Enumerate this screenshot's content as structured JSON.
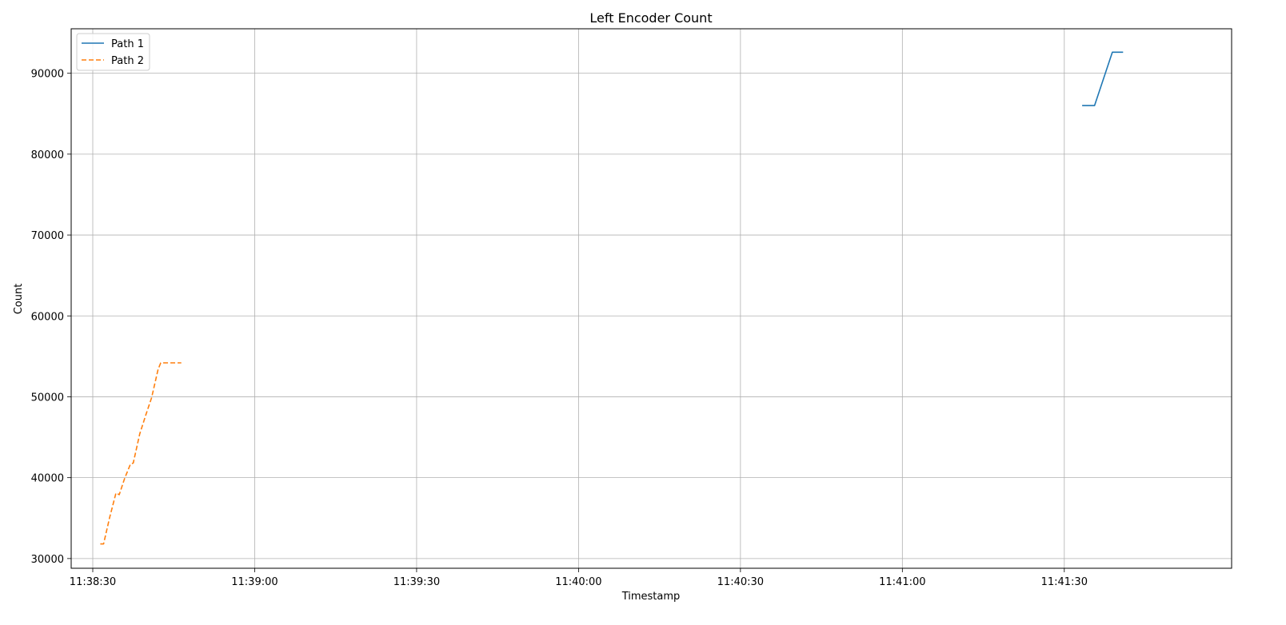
{
  "chart_data": {
    "type": "line",
    "title": "Left Encoder Count",
    "xlabel": "Timestamp",
    "ylabel": "Count",
    "x_axis": "time",
    "xlim": [
      "11:38:26",
      "11:42:01"
    ],
    "ylim": [
      28800,
      95500
    ],
    "x_ticks": [
      "11:38:30",
      "11:39:00",
      "11:39:30",
      "11:40:00",
      "11:40:30",
      "11:41:00",
      "11:41:30"
    ],
    "y_ticks": [
      30000,
      40000,
      50000,
      60000,
      70000,
      80000,
      90000
    ],
    "grid": true,
    "legend_position": "top-left",
    "series": [
      {
        "name": "Path 1",
        "color": "#1f77b4",
        "line_style": "solid",
        "points": [
          [
            "11:41:33.3",
            86000
          ],
          [
            "11:41:35.6",
            86000
          ],
          [
            "11:41:38.9",
            92600
          ],
          [
            "11:41:40.9",
            92600
          ]
        ]
      },
      {
        "name": "Path 2",
        "color": "#ff7f0e",
        "line_style": "dashed",
        "points": [
          [
            "11:38:31.4",
            31800
          ],
          [
            "11:38:32.0",
            31800
          ],
          [
            "11:38:33.1",
            35000
          ],
          [
            "11:38:34.3",
            38100
          ],
          [
            "11:38:34.9",
            37900
          ],
          [
            "11:38:35.9",
            39900
          ],
          [
            "11:38:37.0",
            41700
          ],
          [
            "11:38:37.5",
            41800
          ],
          [
            "11:38:38.7",
            45400
          ],
          [
            "11:38:39.9",
            47900
          ],
          [
            "11:38:40.9",
            49900
          ],
          [
            "11:38:42.1",
            53400
          ],
          [
            "11:38:42.6",
            54200
          ],
          [
            "11:38:45.0",
            54200
          ],
          [
            "11:38:46.4",
            54200
          ]
        ]
      }
    ]
  }
}
